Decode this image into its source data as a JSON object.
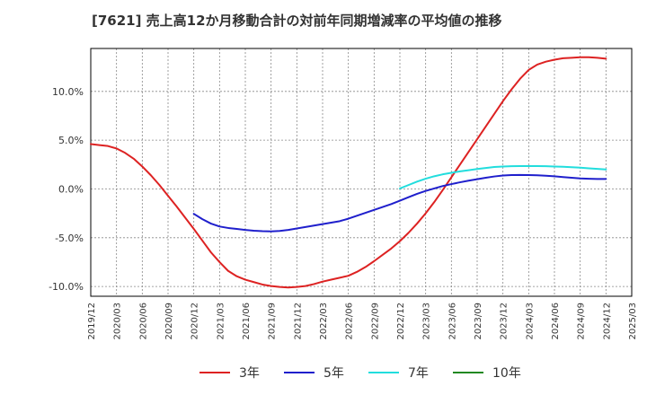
{
  "chart_data": {
    "type": "line",
    "title": "[7621]  売上高12か月移動合計の対前年同期増減率の平均値の推移",
    "xlabel": "",
    "ylabel": "",
    "x_ticks": [
      "2019/12",
      "2020/03",
      "2020/06",
      "2020/09",
      "2020/12",
      "2021/03",
      "2021/06",
      "2021/09",
      "2021/12",
      "2022/03",
      "2022/06",
      "2022/09",
      "2022/12",
      "2023/03",
      "2023/06",
      "2023/09",
      "2023/12",
      "2024/03",
      "2024/06",
      "2024/09",
      "2024/12",
      "2025/03"
    ],
    "y_ticks": [
      {
        "value": 10,
        "label": "10.0%"
      },
      {
        "value": 5,
        "label": "5.0%"
      },
      {
        "value": 0,
        "label": "0.0%"
      },
      {
        "value": -5,
        "label": "-5.0%"
      },
      {
        "value": -10,
        "label": "-10.0%"
      }
    ],
    "ylim": [
      -11,
      14.4
    ],
    "grid": true,
    "legend_position": "bottom",
    "series": [
      {
        "name": "3年",
        "color": "#dd2222",
        "points": [
          [
            "2019/12",
            4.6
          ],
          [
            "2020/01",
            4.5
          ],
          [
            "2020/02",
            4.4
          ],
          [
            "2020/03",
            4.15
          ],
          [
            "2020/04",
            3.7
          ],
          [
            "2020/05",
            3.1
          ],
          [
            "2020/06",
            2.3
          ],
          [
            "2020/07",
            1.4
          ],
          [
            "2020/08",
            0.4
          ],
          [
            "2020/09",
            -0.7
          ],
          [
            "2020/10",
            -1.8
          ],
          [
            "2020/11",
            -2.95
          ],
          [
            "2020/12",
            -4.1
          ],
          [
            "2021/01",
            -5.3
          ],
          [
            "2021/02",
            -6.5
          ],
          [
            "2021/03",
            -7.5
          ],
          [
            "2021/04",
            -8.4
          ],
          [
            "2021/05",
            -8.95
          ],
          [
            "2021/06",
            -9.3
          ],
          [
            "2021/07",
            -9.55
          ],
          [
            "2021/08",
            -9.8
          ],
          [
            "2021/09",
            -9.95
          ],
          [
            "2021/10",
            -10.05
          ],
          [
            "2021/11",
            -10.1
          ],
          [
            "2021/12",
            -10.05
          ],
          [
            "2022/01",
            -9.95
          ],
          [
            "2022/02",
            -9.75
          ],
          [
            "2022/03",
            -9.5
          ],
          [
            "2022/04",
            -9.3
          ],
          [
            "2022/05",
            -9.1
          ],
          [
            "2022/06",
            -8.9
          ],
          [
            "2022/07",
            -8.5
          ],
          [
            "2022/08",
            -8.0
          ],
          [
            "2022/09",
            -7.4
          ],
          [
            "2022/10",
            -6.75
          ],
          [
            "2022/11",
            -6.1
          ],
          [
            "2022/12",
            -5.35
          ],
          [
            "2023/01",
            -4.5
          ],
          [
            "2023/02",
            -3.55
          ],
          [
            "2023/03",
            -2.5
          ],
          [
            "2023/04",
            -1.35
          ],
          [
            "2023/05",
            -0.1
          ],
          [
            "2023/06",
            1.2
          ],
          [
            "2023/07",
            2.5
          ],
          [
            "2023/08",
            3.8
          ],
          [
            "2023/09",
            5.1
          ],
          [
            "2023/10",
            6.4
          ],
          [
            "2023/11",
            7.7
          ],
          [
            "2023/12",
            9.0
          ],
          [
            "2024/01",
            10.2
          ],
          [
            "2024/02",
            11.3
          ],
          [
            "2024/03",
            12.2
          ],
          [
            "2024/04",
            12.75
          ],
          [
            "2024/05",
            13.05
          ],
          [
            "2024/06",
            13.25
          ],
          [
            "2024/07",
            13.4
          ],
          [
            "2024/08",
            13.45
          ],
          [
            "2024/09",
            13.5
          ],
          [
            "2024/10",
            13.5
          ],
          [
            "2024/11",
            13.45
          ],
          [
            "2024/12",
            13.35
          ]
        ]
      },
      {
        "name": "5年",
        "color": "#1f1fcc",
        "points": [
          [
            "2020/12",
            -2.55
          ],
          [
            "2021/01",
            -3.1
          ],
          [
            "2021/02",
            -3.55
          ],
          [
            "2021/03",
            -3.85
          ],
          [
            "2021/04",
            -4.0
          ],
          [
            "2021/05",
            -4.1
          ],
          [
            "2021/06",
            -4.2
          ],
          [
            "2021/07",
            -4.28
          ],
          [
            "2021/08",
            -4.33
          ],
          [
            "2021/09",
            -4.35
          ],
          [
            "2021/10",
            -4.3
          ],
          [
            "2021/11",
            -4.2
          ],
          [
            "2021/12",
            -4.05
          ],
          [
            "2022/01",
            -3.9
          ],
          [
            "2022/02",
            -3.75
          ],
          [
            "2022/03",
            -3.6
          ],
          [
            "2022/04",
            -3.45
          ],
          [
            "2022/05",
            -3.3
          ],
          [
            "2022/06",
            -3.05
          ],
          [
            "2022/07",
            -2.75
          ],
          [
            "2022/08",
            -2.45
          ],
          [
            "2022/09",
            -2.15
          ],
          [
            "2022/10",
            -1.85
          ],
          [
            "2022/11",
            -1.55
          ],
          [
            "2022/12",
            -1.2
          ],
          [
            "2023/01",
            -0.85
          ],
          [
            "2023/02",
            -0.5
          ],
          [
            "2023/03",
            -0.2
          ],
          [
            "2023/04",
            0.05
          ],
          [
            "2023/05",
            0.3
          ],
          [
            "2023/06",
            0.5
          ],
          [
            "2023/07",
            0.68
          ],
          [
            "2023/08",
            0.85
          ],
          [
            "2023/09",
            1.0
          ],
          [
            "2023/10",
            1.15
          ],
          [
            "2023/11",
            1.28
          ],
          [
            "2023/12",
            1.38
          ],
          [
            "2024/01",
            1.42
          ],
          [
            "2024/02",
            1.43
          ],
          [
            "2024/03",
            1.42
          ],
          [
            "2024/04",
            1.4
          ],
          [
            "2024/05",
            1.35
          ],
          [
            "2024/06",
            1.3
          ],
          [
            "2024/07",
            1.22
          ],
          [
            "2024/08",
            1.15
          ],
          [
            "2024/09",
            1.08
          ],
          [
            "2024/10",
            1.04
          ],
          [
            "2024/11",
            1.02
          ],
          [
            "2024/12",
            1.02
          ]
        ]
      },
      {
        "name": "7年",
        "color": "#22dddd",
        "points": [
          [
            "2022/12",
            0.05
          ],
          [
            "2023/01",
            0.4
          ],
          [
            "2023/02",
            0.75
          ],
          [
            "2023/03",
            1.05
          ],
          [
            "2023/04",
            1.3
          ],
          [
            "2023/05",
            1.5
          ],
          [
            "2023/06",
            1.65
          ],
          [
            "2023/07",
            1.8
          ],
          [
            "2023/08",
            1.92
          ],
          [
            "2023/09",
            2.05
          ],
          [
            "2023/10",
            2.15
          ],
          [
            "2023/11",
            2.25
          ],
          [
            "2023/12",
            2.3
          ],
          [
            "2024/01",
            2.33
          ],
          [
            "2024/02",
            2.35
          ],
          [
            "2024/03",
            2.35
          ],
          [
            "2024/04",
            2.35
          ],
          [
            "2024/05",
            2.33
          ],
          [
            "2024/06",
            2.3
          ],
          [
            "2024/07",
            2.27
          ],
          [
            "2024/08",
            2.23
          ],
          [
            "2024/09",
            2.18
          ],
          [
            "2024/10",
            2.12
          ],
          [
            "2024/11",
            2.06
          ],
          [
            "2024/12",
            2.0
          ]
        ]
      },
      {
        "name": "10年",
        "color": "#228822",
        "points": []
      }
    ]
  }
}
